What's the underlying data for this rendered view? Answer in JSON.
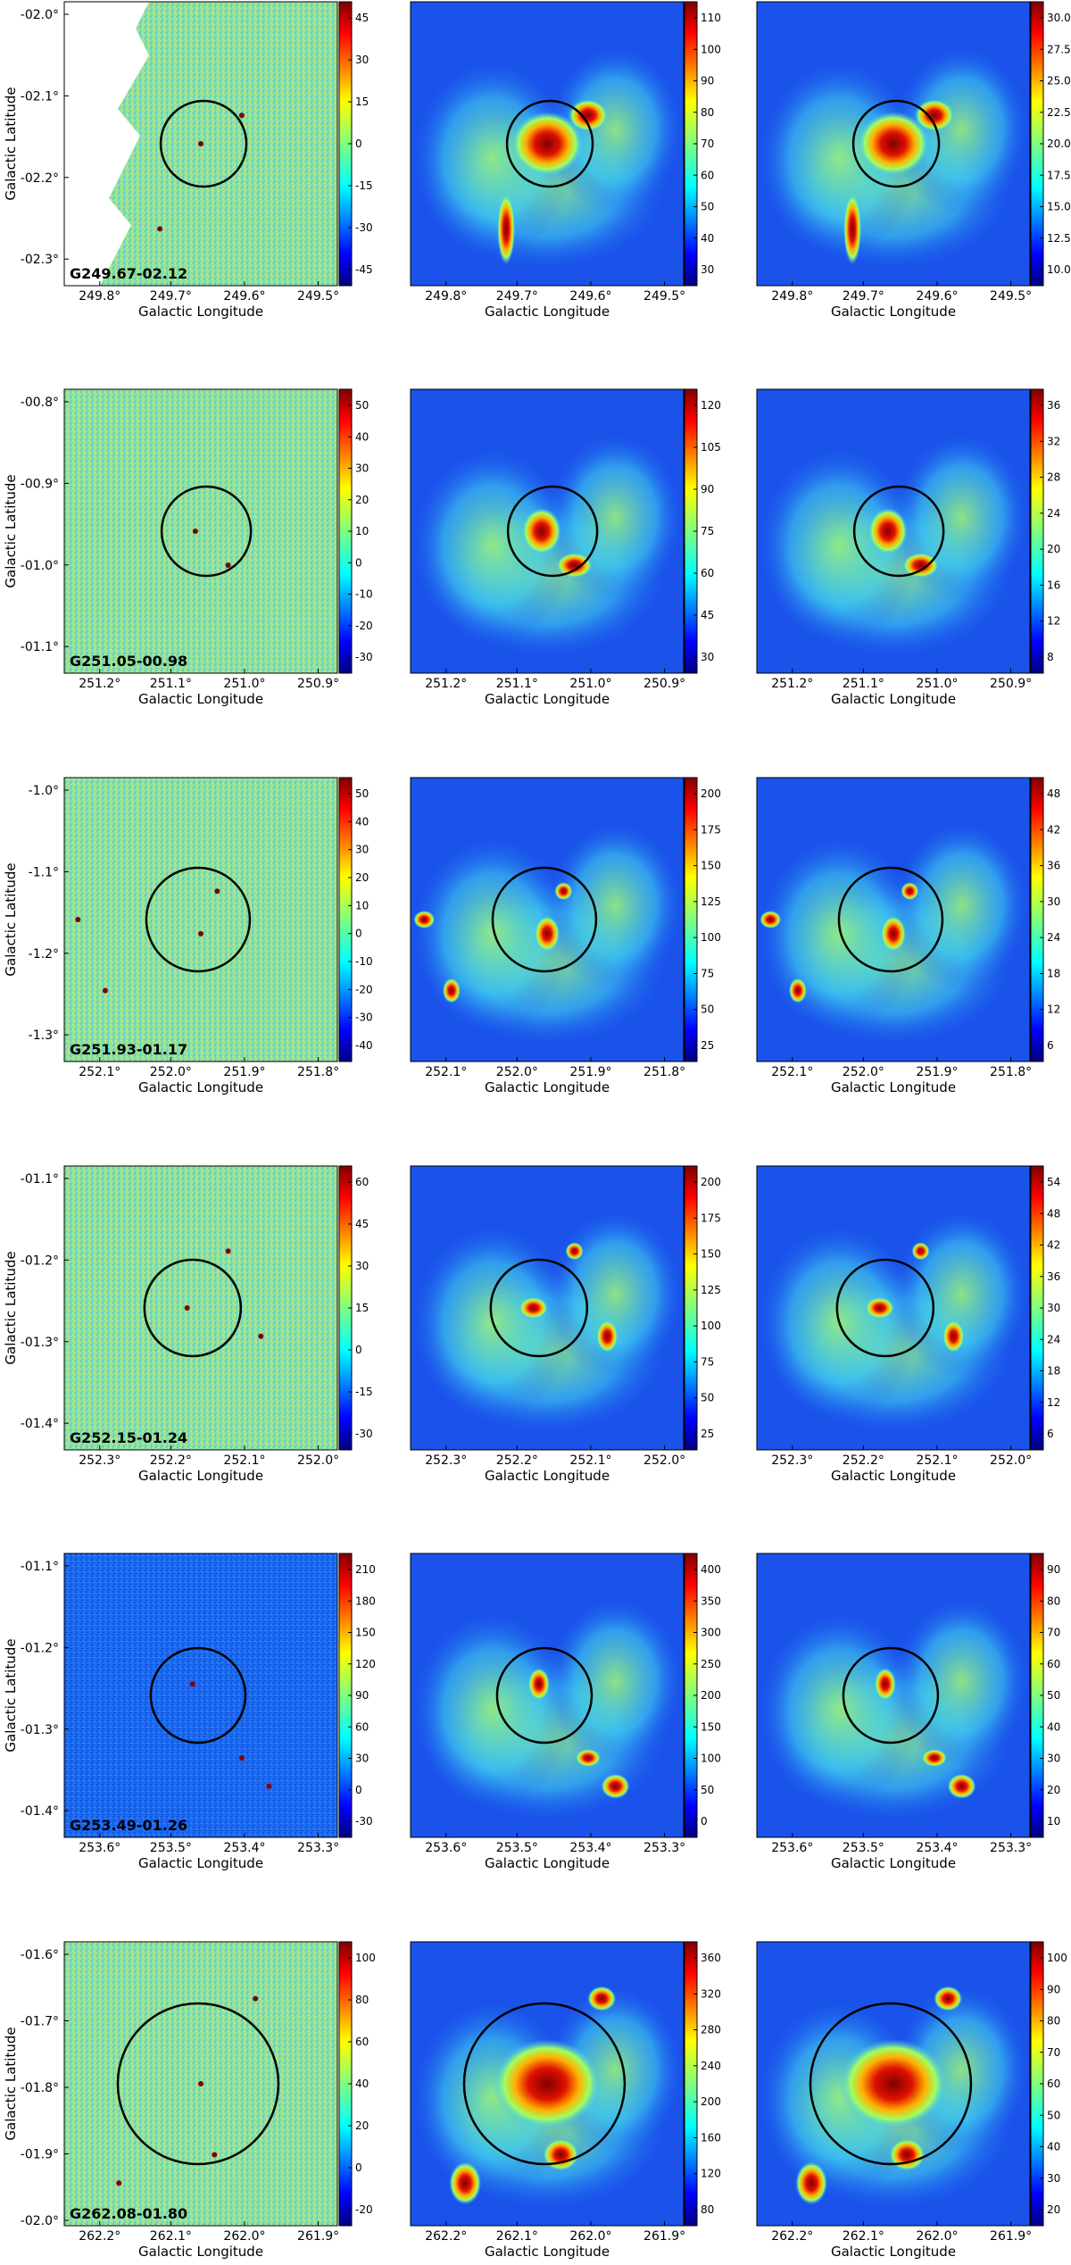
{
  "figure": {
    "axis_labels": {
      "x": "Galactic Longitude",
      "y": "Galactic Latitude"
    },
    "rows": [
      {
        "name": "G249.67-02.12",
        "y_ticks": [
          "-02.0°",
          "-02.1°",
          "-02.2°",
          "-02.3°"
        ],
        "x_ticks": [
          "249.8°",
          "249.7°",
          "249.6°",
          "249.5°"
        ],
        "colorbars": [
          [
            "45",
            "30",
            "15",
            "0",
            "-15",
            "-30",
            "-45"
          ],
          [
            "110",
            "100",
            "90",
            "80",
            "70",
            "60",
            "50",
            "40",
            "30"
          ],
          [
            "30.0",
            "27.5",
            "25.0",
            "22.5",
            "20.0",
            "17.5",
            "15.0",
            "12.5",
            "10.0"
          ]
        ]
      },
      {
        "name": "G251.05-00.98",
        "y_ticks": [
          "-00.8°",
          "-00.9°",
          "-01.0°",
          "-01.1°"
        ],
        "x_ticks": [
          "251.2°",
          "251.1°",
          "251.0°",
          "250.9°"
        ],
        "colorbars": [
          [
            "50",
            "40",
            "30",
            "20",
            "10",
            "0",
            "-10",
            "-20",
            "-30"
          ],
          [
            "120",
            "105",
            "90",
            "75",
            "60",
            "45",
            "30"
          ],
          [
            "36",
            "32",
            "28",
            "24",
            "20",
            "16",
            "12",
            "8"
          ]
        ]
      },
      {
        "name": "G251.93-01.17",
        "y_ticks": [
          "-1.0°",
          "-1.1°",
          "-1.2°",
          "-1.3°"
        ],
        "x_ticks": [
          "252.1°",
          "252.0°",
          "251.9°",
          "251.8°"
        ],
        "colorbars": [
          [
            "50",
            "40",
            "30",
            "20",
            "10",
            "0",
            "-10",
            "-20",
            "-30",
            "-40"
          ],
          [
            "200",
            "175",
            "150",
            "125",
            "100",
            "75",
            "50",
            "25"
          ],
          [
            "48",
            "42",
            "36",
            "30",
            "24",
            "18",
            "12",
            "6"
          ]
        ]
      },
      {
        "name": "G252.15-01.24",
        "y_ticks": [
          "-01.1°",
          "-01.2°",
          "-01.3°",
          "-01.4°"
        ],
        "x_ticks": [
          "252.3°",
          "252.2°",
          "252.1°",
          "252.0°"
        ],
        "colorbars": [
          [
            "60",
            "45",
            "30",
            "15",
            "0",
            "-15",
            "-30"
          ],
          [
            "200",
            "175",
            "150",
            "125",
            "100",
            "75",
            "50",
            "25"
          ],
          [
            "54",
            "48",
            "42",
            "36",
            "30",
            "24",
            "18",
            "12",
            "6"
          ]
        ]
      },
      {
        "name": "G253.49-01.26",
        "y_ticks": [
          "-01.1°",
          "-01.2°",
          "-01.3°",
          "-01.4°"
        ],
        "x_ticks": [
          "253.6°",
          "253.5°",
          "253.4°",
          "253.3°"
        ],
        "colorbars": [
          [
            "210",
            "180",
            "150",
            "120",
            "90",
            "60",
            "30",
            "0",
            "-30"
          ],
          [
            "400",
            "350",
            "300",
            "250",
            "200",
            "150",
            "100",
            "50",
            "0"
          ],
          [
            "90",
            "80",
            "70",
            "60",
            "50",
            "40",
            "30",
            "20",
            "10"
          ]
        ]
      },
      {
        "name": "G262.08-01.80",
        "y_ticks": [
          "-01.6°",
          "-01.7°",
          "-01.8°",
          "-01.9°",
          "-02.0°"
        ],
        "x_ticks": [
          "262.2°",
          "262.1°",
          "262.0°",
          "261.9°"
        ],
        "colorbars": [
          [
            "100",
            "80",
            "60",
            "40",
            "20",
            "0",
            "-20"
          ],
          [
            "360",
            "320",
            "280",
            "240",
            "200",
            "160",
            "120",
            "80"
          ],
          [
            "100",
            "90",
            "80",
            "70",
            "60",
            "50",
            "40",
            "30",
            "20"
          ]
        ]
      }
    ],
    "colors": {
      "jet_dark_blue": "#00007f",
      "jet_blue": "#0000ff",
      "jet_cyan": "#00ffff",
      "jet_yellow": "#ffff00",
      "jet_red": "#ff0000",
      "jet_dark_red": "#7f0000",
      "circle": "#000000"
    }
  }
}
